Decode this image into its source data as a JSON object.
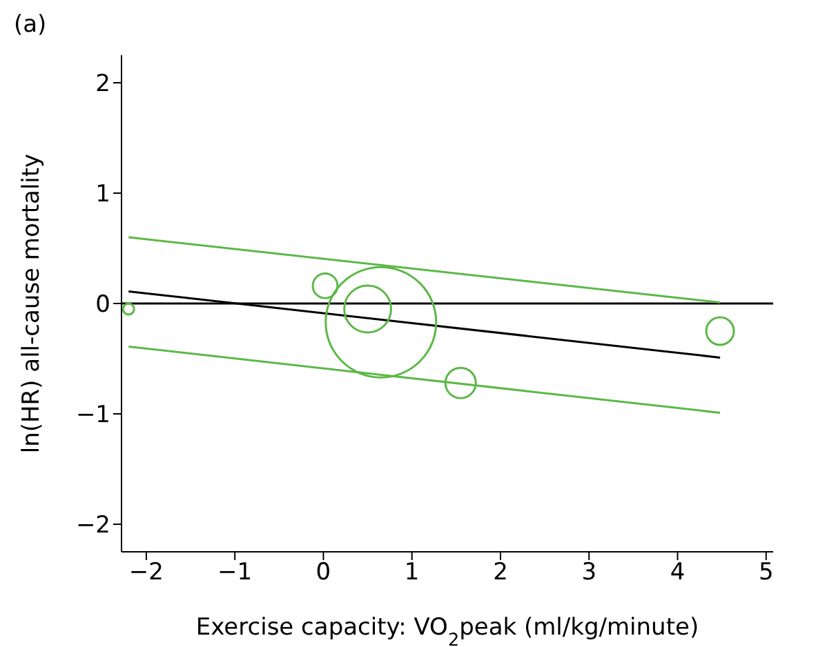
{
  "chart_data": {
    "type": "bubble",
    "title": "(a)",
    "xlabel": "Exercise capacity: VO$_{2}$peak (ml/kg/minute)",
    "ylabel": "ln(HR) all-cause mortality",
    "xlim": [
      -2.28,
      5.08
    ],
    "ylim": [
      -2.25,
      2.25
    ],
    "xticks": [
      {
        "value": -2,
        "label": "−2"
      },
      {
        "value": -1,
        "label": "−1"
      },
      0,
      1,
      2,
      3,
      4,
      5
    ],
    "yticks": [
      {
        "value": -2,
        "label": "−2"
      },
      {
        "value": -1,
        "label": "−1"
      },
      0,
      1,
      2
    ],
    "grid": false,
    "legend": false,
    "marker": "circle",
    "ref_lines": [
      {
        "axis": "y",
        "value": 0,
        "color": "#000000"
      }
    ],
    "series": [
      {
        "color": "#5cb847",
        "x": [
          -2.2,
          0.02,
          0.5,
          0.65,
          1.55,
          4.48
        ],
        "values": [
          -0.05,
          0.16,
          -0.05,
          -0.17,
          -0.72,
          -0.25
        ],
        "sizes": [
          0.01,
          0.05,
          0.18,
          1,
          0.076,
          0.0625
        ]
      },
      {
        "type": "line",
        "color": "#000000",
        "x": [
          -2.2,
          4.48
        ],
        "values": [
          0.11,
          -0.49
        ],
        "marker": "none"
      },
      {
        "type": "line",
        "color": "#5cb847",
        "x": [
          -2.2,
          4.48
        ],
        "values": [
          0.6,
          0.01
        ],
        "marker": "none"
      },
      {
        "type": "line",
        "color": "#5cb847",
        "x": [
          -2.2,
          4.48
        ],
        "values": [
          -0.39,
          -0.99
        ],
        "marker": "none"
      }
    ]
  }
}
